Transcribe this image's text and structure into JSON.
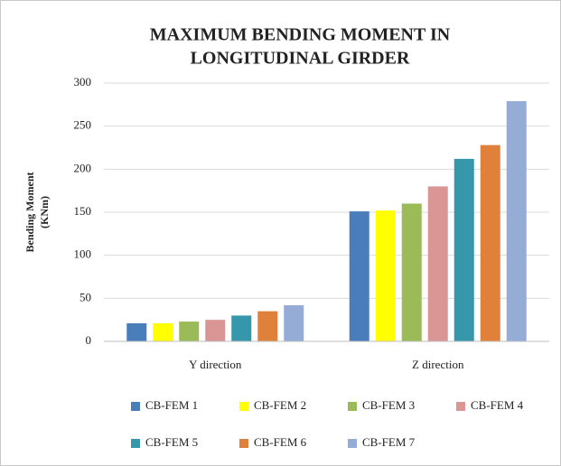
{
  "chart_data": {
    "type": "bar",
    "title": [
      "MAXIMUM BENDING MOMENT IN",
      "LONGITUDINAL GIRDER"
    ],
    "y_label": [
      "Bending Moment",
      "(KNm)"
    ],
    "categories": [
      "Y direction",
      "Z direction"
    ],
    "series": [
      {
        "name": "CB-FEM 1",
        "color": "#4a7ebb",
        "values": [
          21,
          151
        ]
      },
      {
        "name": "CB-FEM 2",
        "color": "#ffff00",
        "values": [
          21,
          152
        ]
      },
      {
        "name": "CB-FEM 3",
        "color": "#9bbb59",
        "values": [
          23,
          160
        ]
      },
      {
        "name": "CB-FEM 4",
        "color": "#da9694",
        "values": [
          25,
          180
        ]
      },
      {
        "name": "CB-FEM 5",
        "color": "#3597a9",
        "values": [
          30,
          212
        ]
      },
      {
        "name": "CB-FEM 6",
        "color": "#e0813b",
        "values": [
          35,
          228
        ]
      },
      {
        "name": "CB-FEM 7",
        "color": "#95acd6",
        "values": [
          42,
          279
        ]
      }
    ],
    "ylim": [
      0,
      300
    ],
    "yticks": [
      0,
      50,
      100,
      150,
      200,
      250,
      300
    ],
    "grid": true,
    "legend": "bottom"
  }
}
